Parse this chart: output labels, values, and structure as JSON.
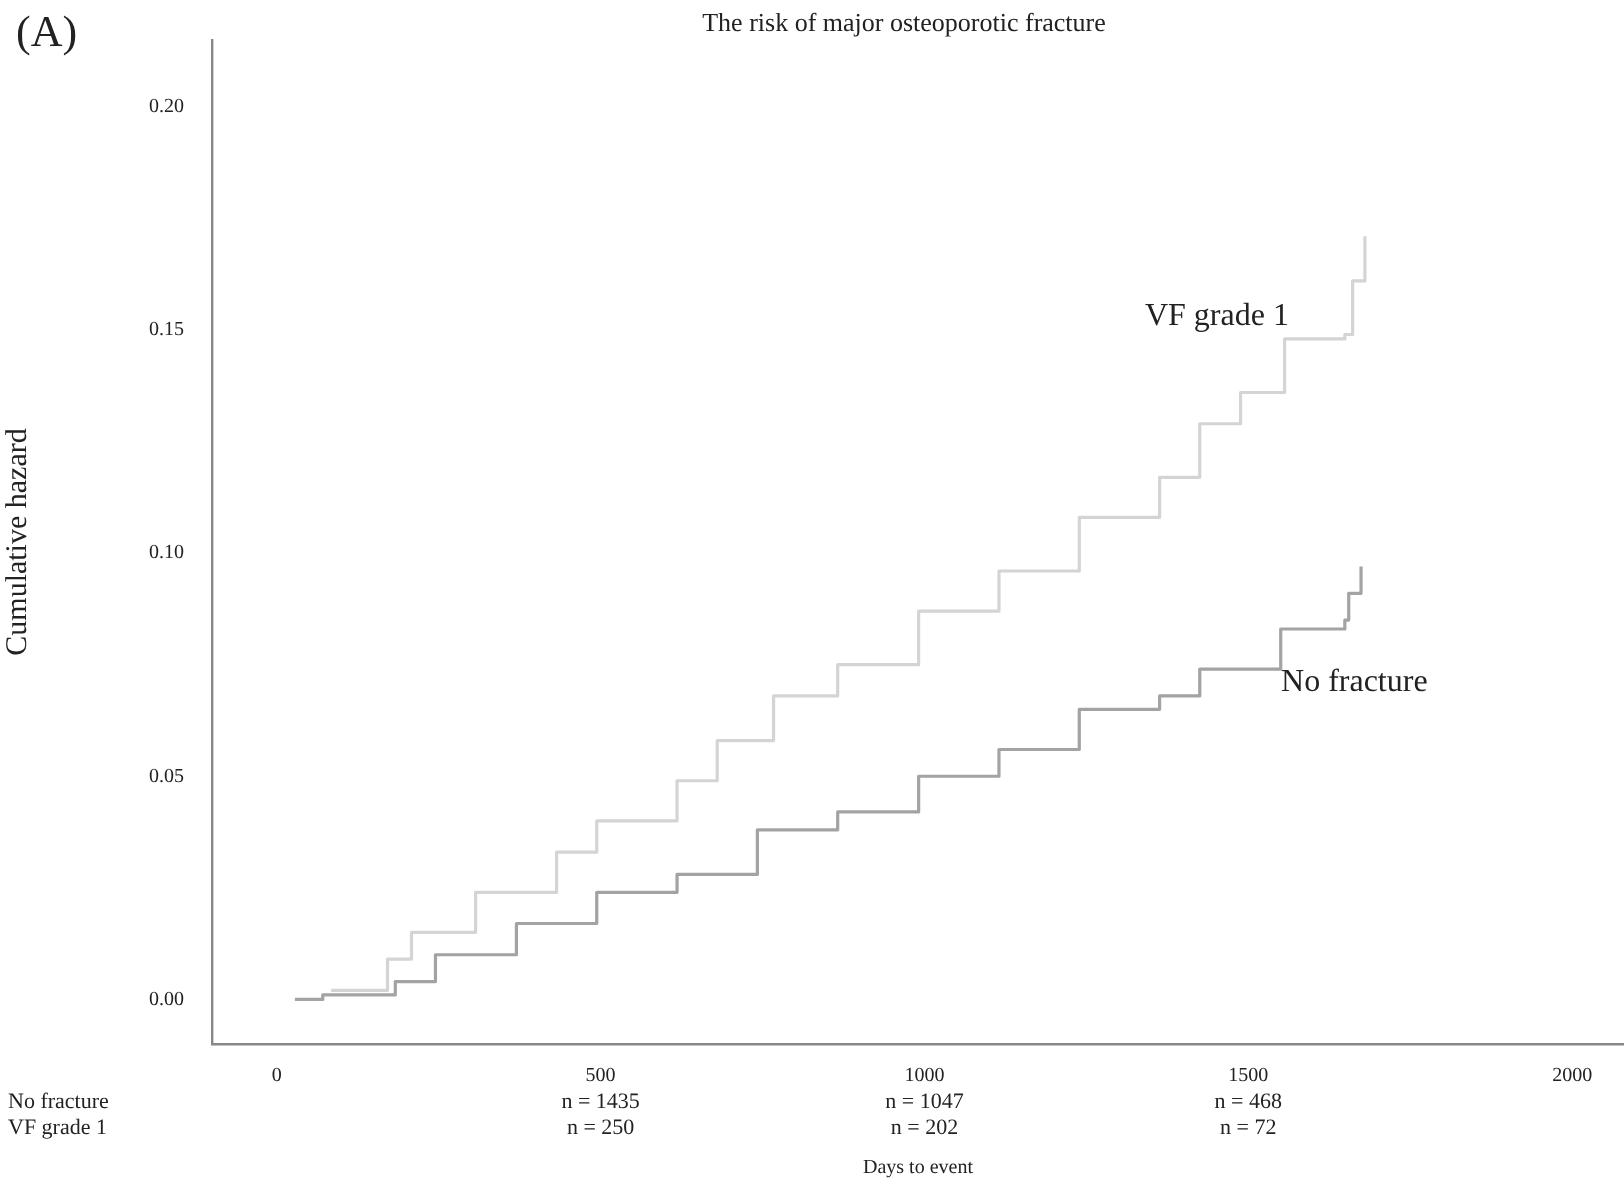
{
  "chart_data": {
    "type": "step",
    "title": "The risk of major osteoporotic fracture",
    "xlabel": "Days to event",
    "ylabel": "Cumulative hazard",
    "xlim": [
      -100,
      2080
    ],
    "ylim": [
      -0.01,
      0.215
    ],
    "xticks": [
      0,
      500,
      1000,
      1500,
      2000
    ],
    "yticks": [
      {
        "value": 0,
        "label": "0.00"
      },
      {
        "value": 0.05,
        "label": "0.05"
      },
      {
        "value": 0.1,
        "label": "0.10"
      },
      {
        "value": 0.15,
        "label": "0.15"
      },
      {
        "value": 0.2,
        "label": "0.20"
      }
    ],
    "grid": false,
    "legend": false,
    "marker": "none",
    "line_style": "solid",
    "annotations": [
      "(A)",
      "n = 1435",
      "n = 1047",
      "n = 468",
      "n = 250",
      "n = 202",
      "n = 72"
    ],
    "series": [
      {
        "name": "VF grade 1",
        "color": "#d4d4d4",
        "x": [
          84,
          171,
          208,
          307,
          432,
          494,
          618,
          680,
          767,
          866,
          991,
          1115,
          1239,
          1363,
          1425,
          1488,
          1556,
          1649,
          1661,
          1680
        ],
        "values": [
          0.002,
          0.009,
          0.015,
          0.024,
          0.033,
          0.04,
          0.049,
          0.058,
          0.068,
          0.075,
          0.087,
          0.096,
          0.108,
          0.117,
          0.129,
          0.136,
          0.148,
          0.149,
          0.161,
          0.171
        ]
      },
      {
        "name": "No fracture",
        "color": "#a3a3a3",
        "x": [
          28,
          71,
          183,
          245,
          370,
          494,
          618,
          742,
          866,
          991,
          1115,
          1239,
          1363,
          1425,
          1550,
          1649,
          1655,
          1674
        ],
        "values": [
          0,
          0.001,
          0.004,
          0.01,
          0.017,
          0.024,
          0.028,
          0.038,
          0.042,
          0.05,
          0.056,
          0.065,
          0.068,
          0.074,
          0.083,
          0.085,
          0.091,
          0.097
        ]
      }
    ]
  }
}
